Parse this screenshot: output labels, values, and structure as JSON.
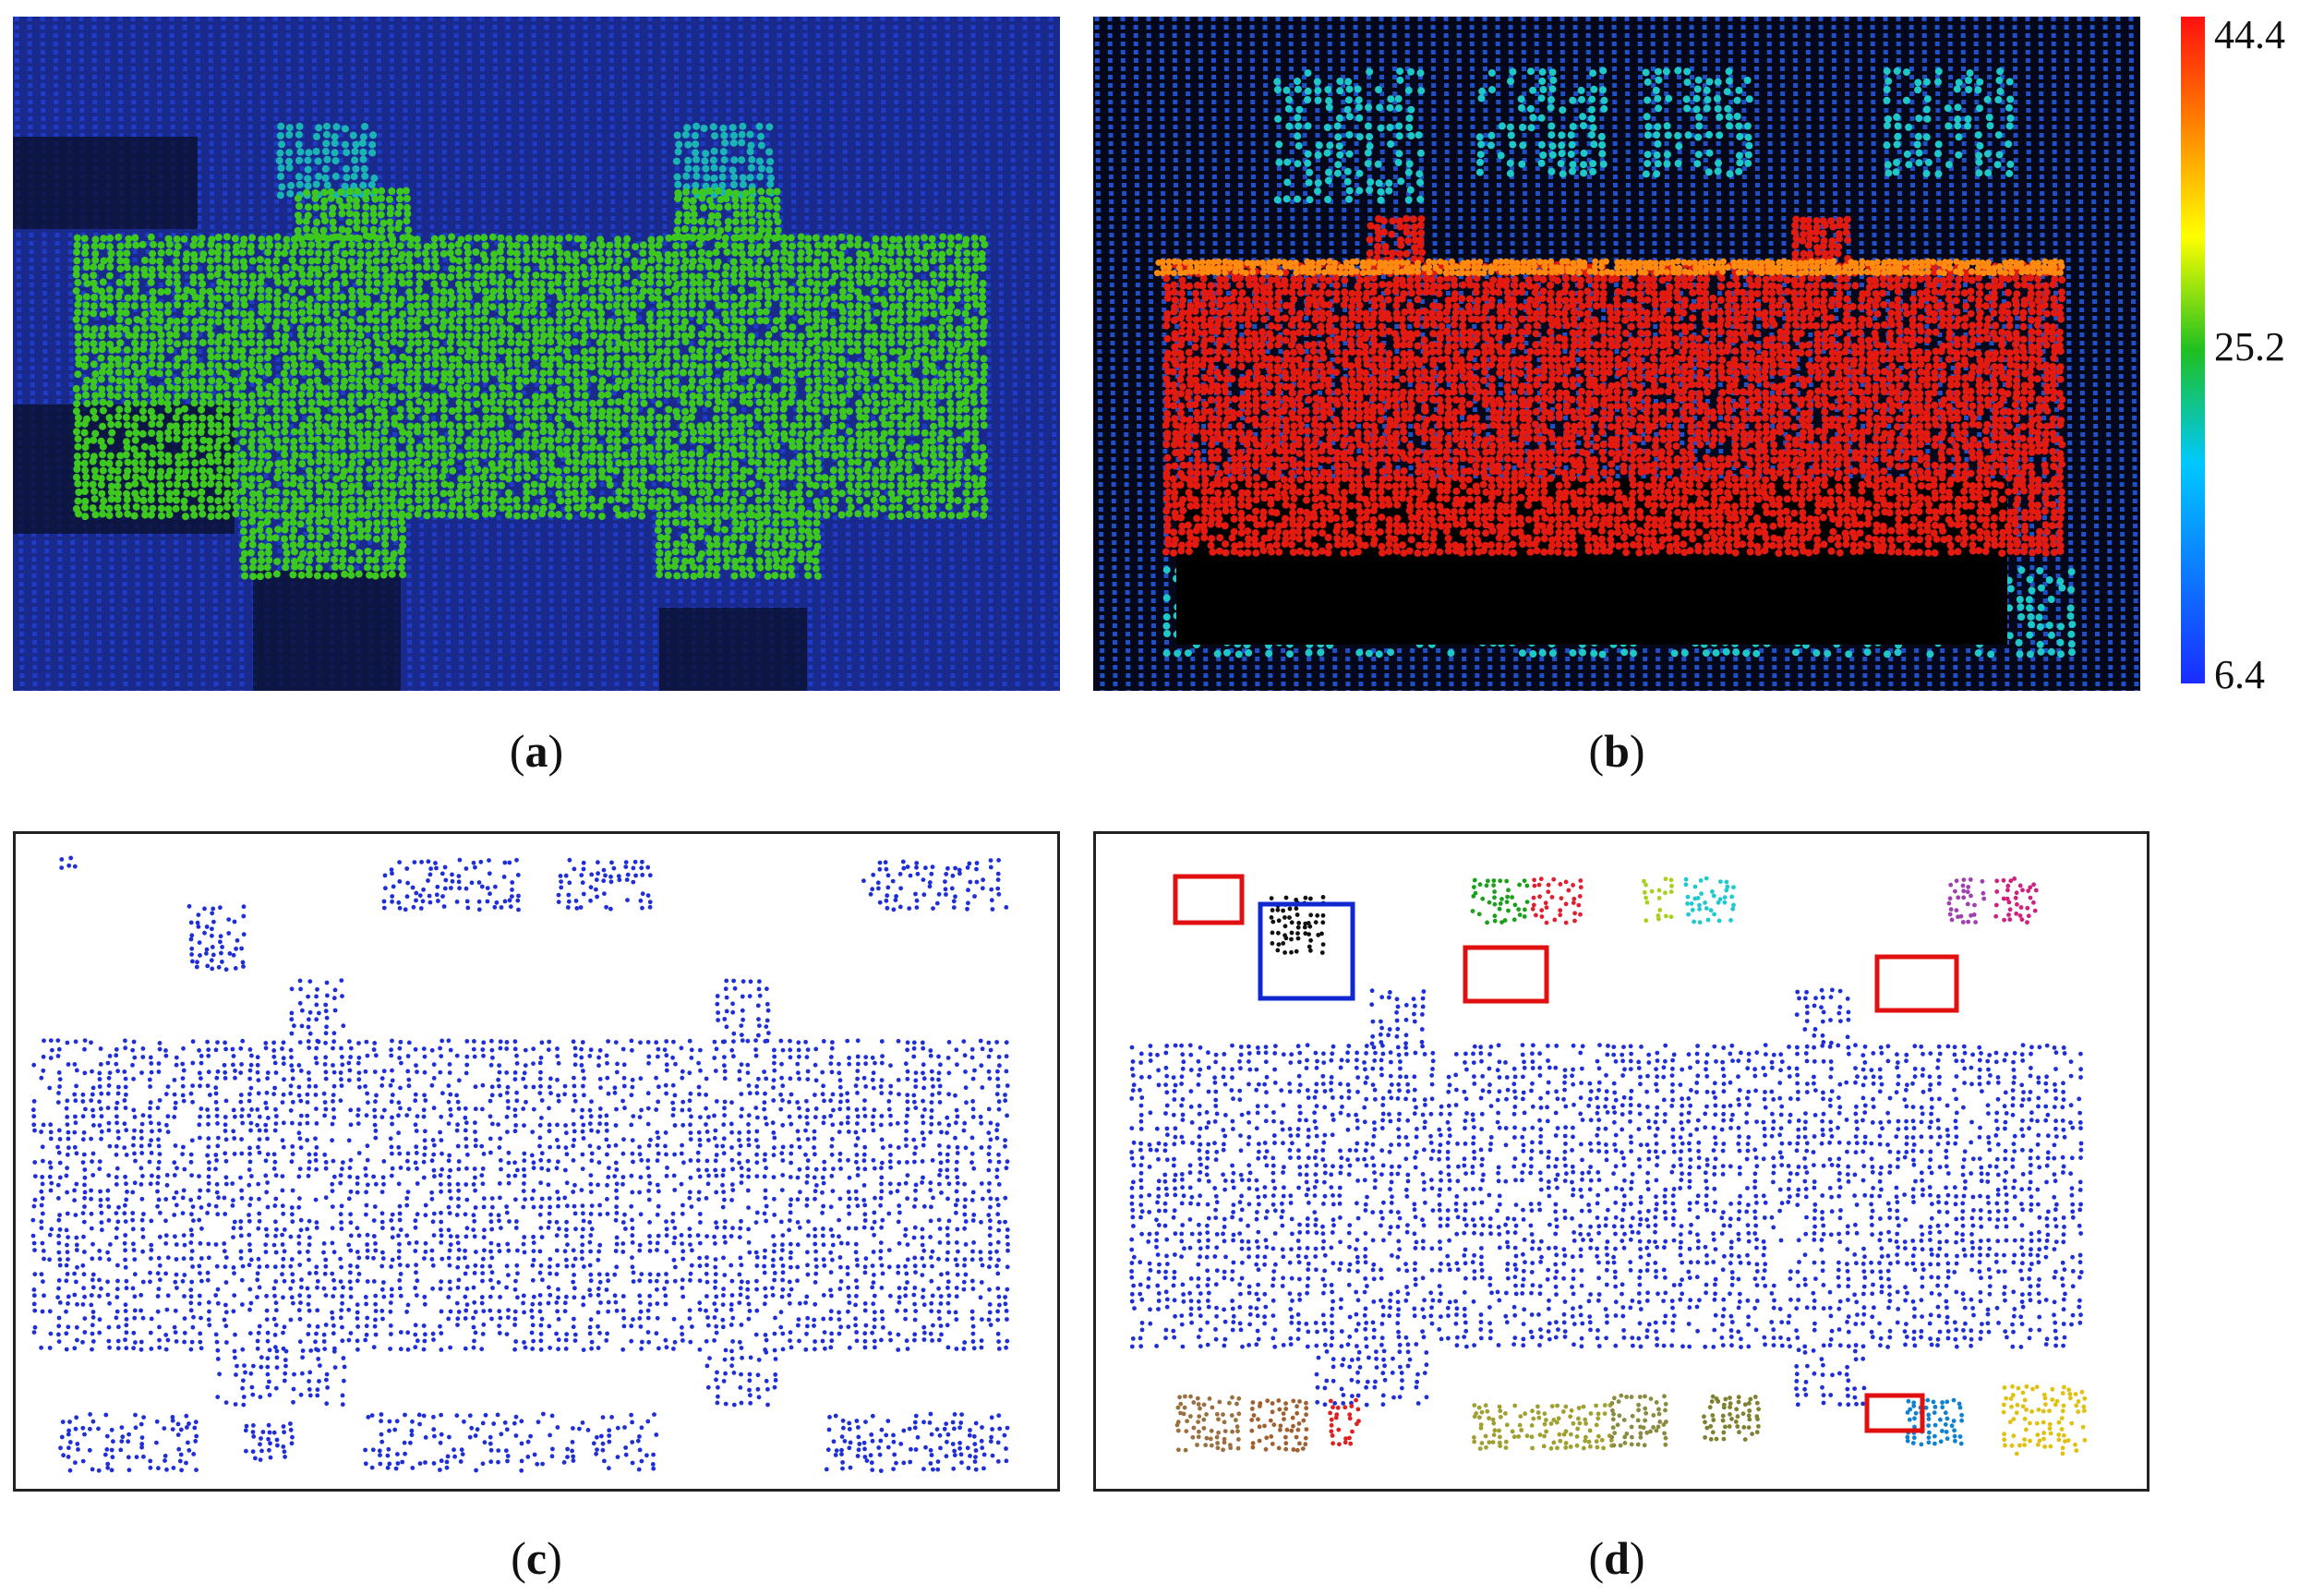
{
  "panels": {
    "a": {
      "label": "a"
    },
    "b": {
      "label": "b"
    },
    "c": {
      "label": "c"
    },
    "d": {
      "label": "d"
    }
  },
  "colorbar": {
    "max": "44.4",
    "mid": "25.2",
    "min": "6.4",
    "colors": [
      "#1a2cff",
      "#00c8ff",
      "#20c020",
      "#ffff00",
      "#ff8000",
      "#ff1010"
    ]
  },
  "colors": {
    "ground_a": "#1f3cc8",
    "roof_a": "#3cc81e",
    "tree_a": "#1ab4b4",
    "ground_b": "#2050c8",
    "roof_b": "#e21a10",
    "tree_b": "#1ec8c8",
    "points_c": "#1f2fd8",
    "highlight_red": "#e01010",
    "highlight_blue": "#1028d0"
  }
}
